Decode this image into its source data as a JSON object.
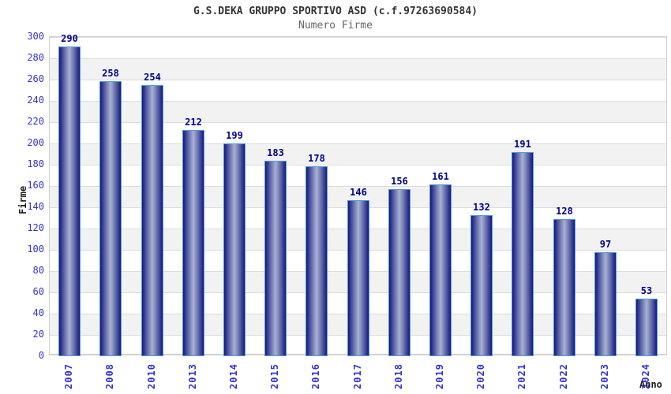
{
  "chart_data": {
    "type": "bar",
    "title": "G.S.DEKA GRUPPO SPORTIVO ASD (c.f.97263690584)",
    "subtitle": "Numero Firme",
    "xlabel": "Anno",
    "ylabel": "Firme",
    "categories": [
      "2007",
      "2008",
      "2010",
      "2013",
      "2014",
      "2015",
      "2016",
      "2017",
      "2018",
      "2019",
      "2020",
      "2021",
      "2022",
      "2023",
      "2024"
    ],
    "values": [
      290,
      258,
      254,
      212,
      199,
      183,
      178,
      146,
      156,
      161,
      132,
      191,
      128,
      97,
      53
    ],
    "ylim": [
      0,
      300
    ],
    "ytick_step": 20,
    "yticks": [
      0,
      20,
      40,
      60,
      80,
      100,
      120,
      140,
      160,
      180,
      200,
      220,
      240,
      260,
      280,
      300
    ],
    "grid": true,
    "legend": false,
    "colors": {
      "bar_dark": "#16167d",
      "bar_mid": "#5560a5",
      "bar_light": "#aab1d2",
      "bar_border": "#4d9be0",
      "tick_label": "#3333cc",
      "value_label": "#00008b",
      "axis_title": "#1a1a1a",
      "title_color": "#333333",
      "subtitle_color": "#666666",
      "band": "#f2f2f2",
      "band_alt": "#ffffff",
      "gridline": "#dcdcdc",
      "plot_border": "#d0d0d0"
    }
  }
}
